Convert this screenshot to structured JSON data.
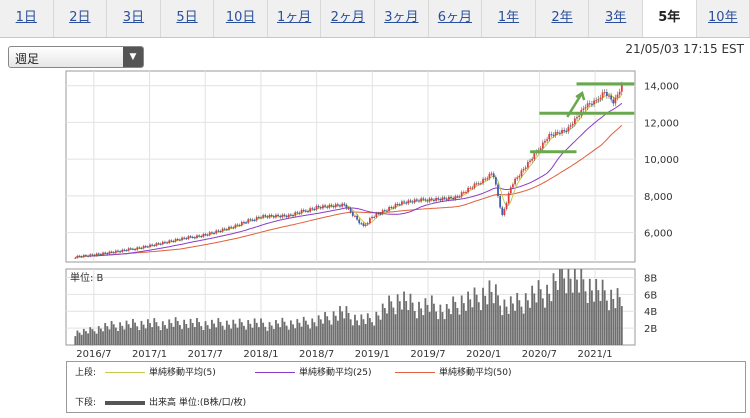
{
  "tabs": [
    {
      "label": "1日",
      "active": false
    },
    {
      "label": "2日",
      "active": false
    },
    {
      "label": "3日",
      "active": false
    },
    {
      "label": "5日",
      "active": false
    },
    {
      "label": "10日",
      "active": false
    },
    {
      "label": "1ヶ月",
      "active": false
    },
    {
      "label": "2ヶ月",
      "active": false
    },
    {
      "label": "3ヶ月",
      "active": false
    },
    {
      "label": "6ヶ月",
      "active": false
    },
    {
      "label": "1年",
      "active": false
    },
    {
      "label": "2年",
      "active": false
    },
    {
      "label": "3年",
      "active": false
    },
    {
      "label": "5年",
      "active": true
    },
    {
      "label": "10年",
      "active": false
    }
  ],
  "interval_select": {
    "value": "週足"
  },
  "timestamp": "21/05/03 17:15 EST",
  "colors": {
    "ma5": "#c8c84a",
    "ma25": "#8a3cc8",
    "ma50": "#e0603c",
    "candle_up": "#e03c3c",
    "candle_down": "#3a5fb0",
    "volume": "#6e6e6e",
    "annotation": "#6aa84f"
  },
  "chart_data": [
    {
      "type": "line",
      "x": [
        "2016-05",
        "2016-07",
        "2016-10",
        "2017-01",
        "2017-04",
        "2017-07",
        "2017-10",
        "2018-01",
        "2018-04",
        "2018-07",
        "2018-10",
        "2018-12",
        "2019-01",
        "2019-04",
        "2019-07",
        "2019-10",
        "2020-01",
        "2020-02",
        "2020-03",
        "2020-04",
        "2020-06",
        "2020-08",
        "2020-10",
        "2020-12",
        "2021-01",
        "2021-02",
        "2021-03",
        "2021-04"
      ],
      "series": [
        {
          "values": [
            4700,
            4800,
            5000,
            5300,
            5600,
            5900,
            6300,
            6900,
            6900,
            7400,
            7500,
            6300,
            6900,
            7600,
            7800,
            7900,
            8900,
            9300,
            6900,
            8600,
            9900,
            11300,
            11600,
            12900,
            13100,
            13700,
            13100,
            14100
          ]
        }
      ],
      "xticks": [
        "2016/7",
        "2017/1",
        "2017/7",
        "2018/1",
        "2018/7",
        "2019/1",
        "2019/7",
        "2020/1",
        "2020/7",
        "2021/1"
      ],
      "yticks": [
        "6,000",
        "8,000",
        "10,000",
        "12,000",
        "14,000"
      ],
      "ylim": [
        4400,
        14800
      ]
    },
    {
      "type": "bar",
      "unit_label": "単位: B",
      "yticks": [
        "2B",
        "4B",
        "6B",
        "8B"
      ],
      "ylim": [
        0,
        9
      ],
      "values_approx": [
        1.5,
        1.7,
        2.2,
        2.4,
        2.5,
        2.6,
        2.5,
        2.7,
        2.6,
        2.5,
        2.6,
        2.5,
        2.7,
        2.4,
        2.6,
        2.6,
        2.8,
        3.2,
        4.0,
        3.1,
        3.0,
        4.5,
        5.6,
        4.5,
        4.8,
        4.0,
        5.2,
        5.5,
        6.5,
        4.8,
        5.0,
        6.1,
        6.4,
        9.0,
        7.6,
        6.8,
        5.9,
        5.6
      ]
    }
  ],
  "legend": {
    "upper_label": "上段:",
    "lower_label": "下段:",
    "ma5_label": "単純移動平均(5)",
    "ma25_label": "単純移動平均(25)",
    "ma50_label": "単純移動平均(50)",
    "volume_label": "出来高 単位:(B株/口/枚)"
  }
}
